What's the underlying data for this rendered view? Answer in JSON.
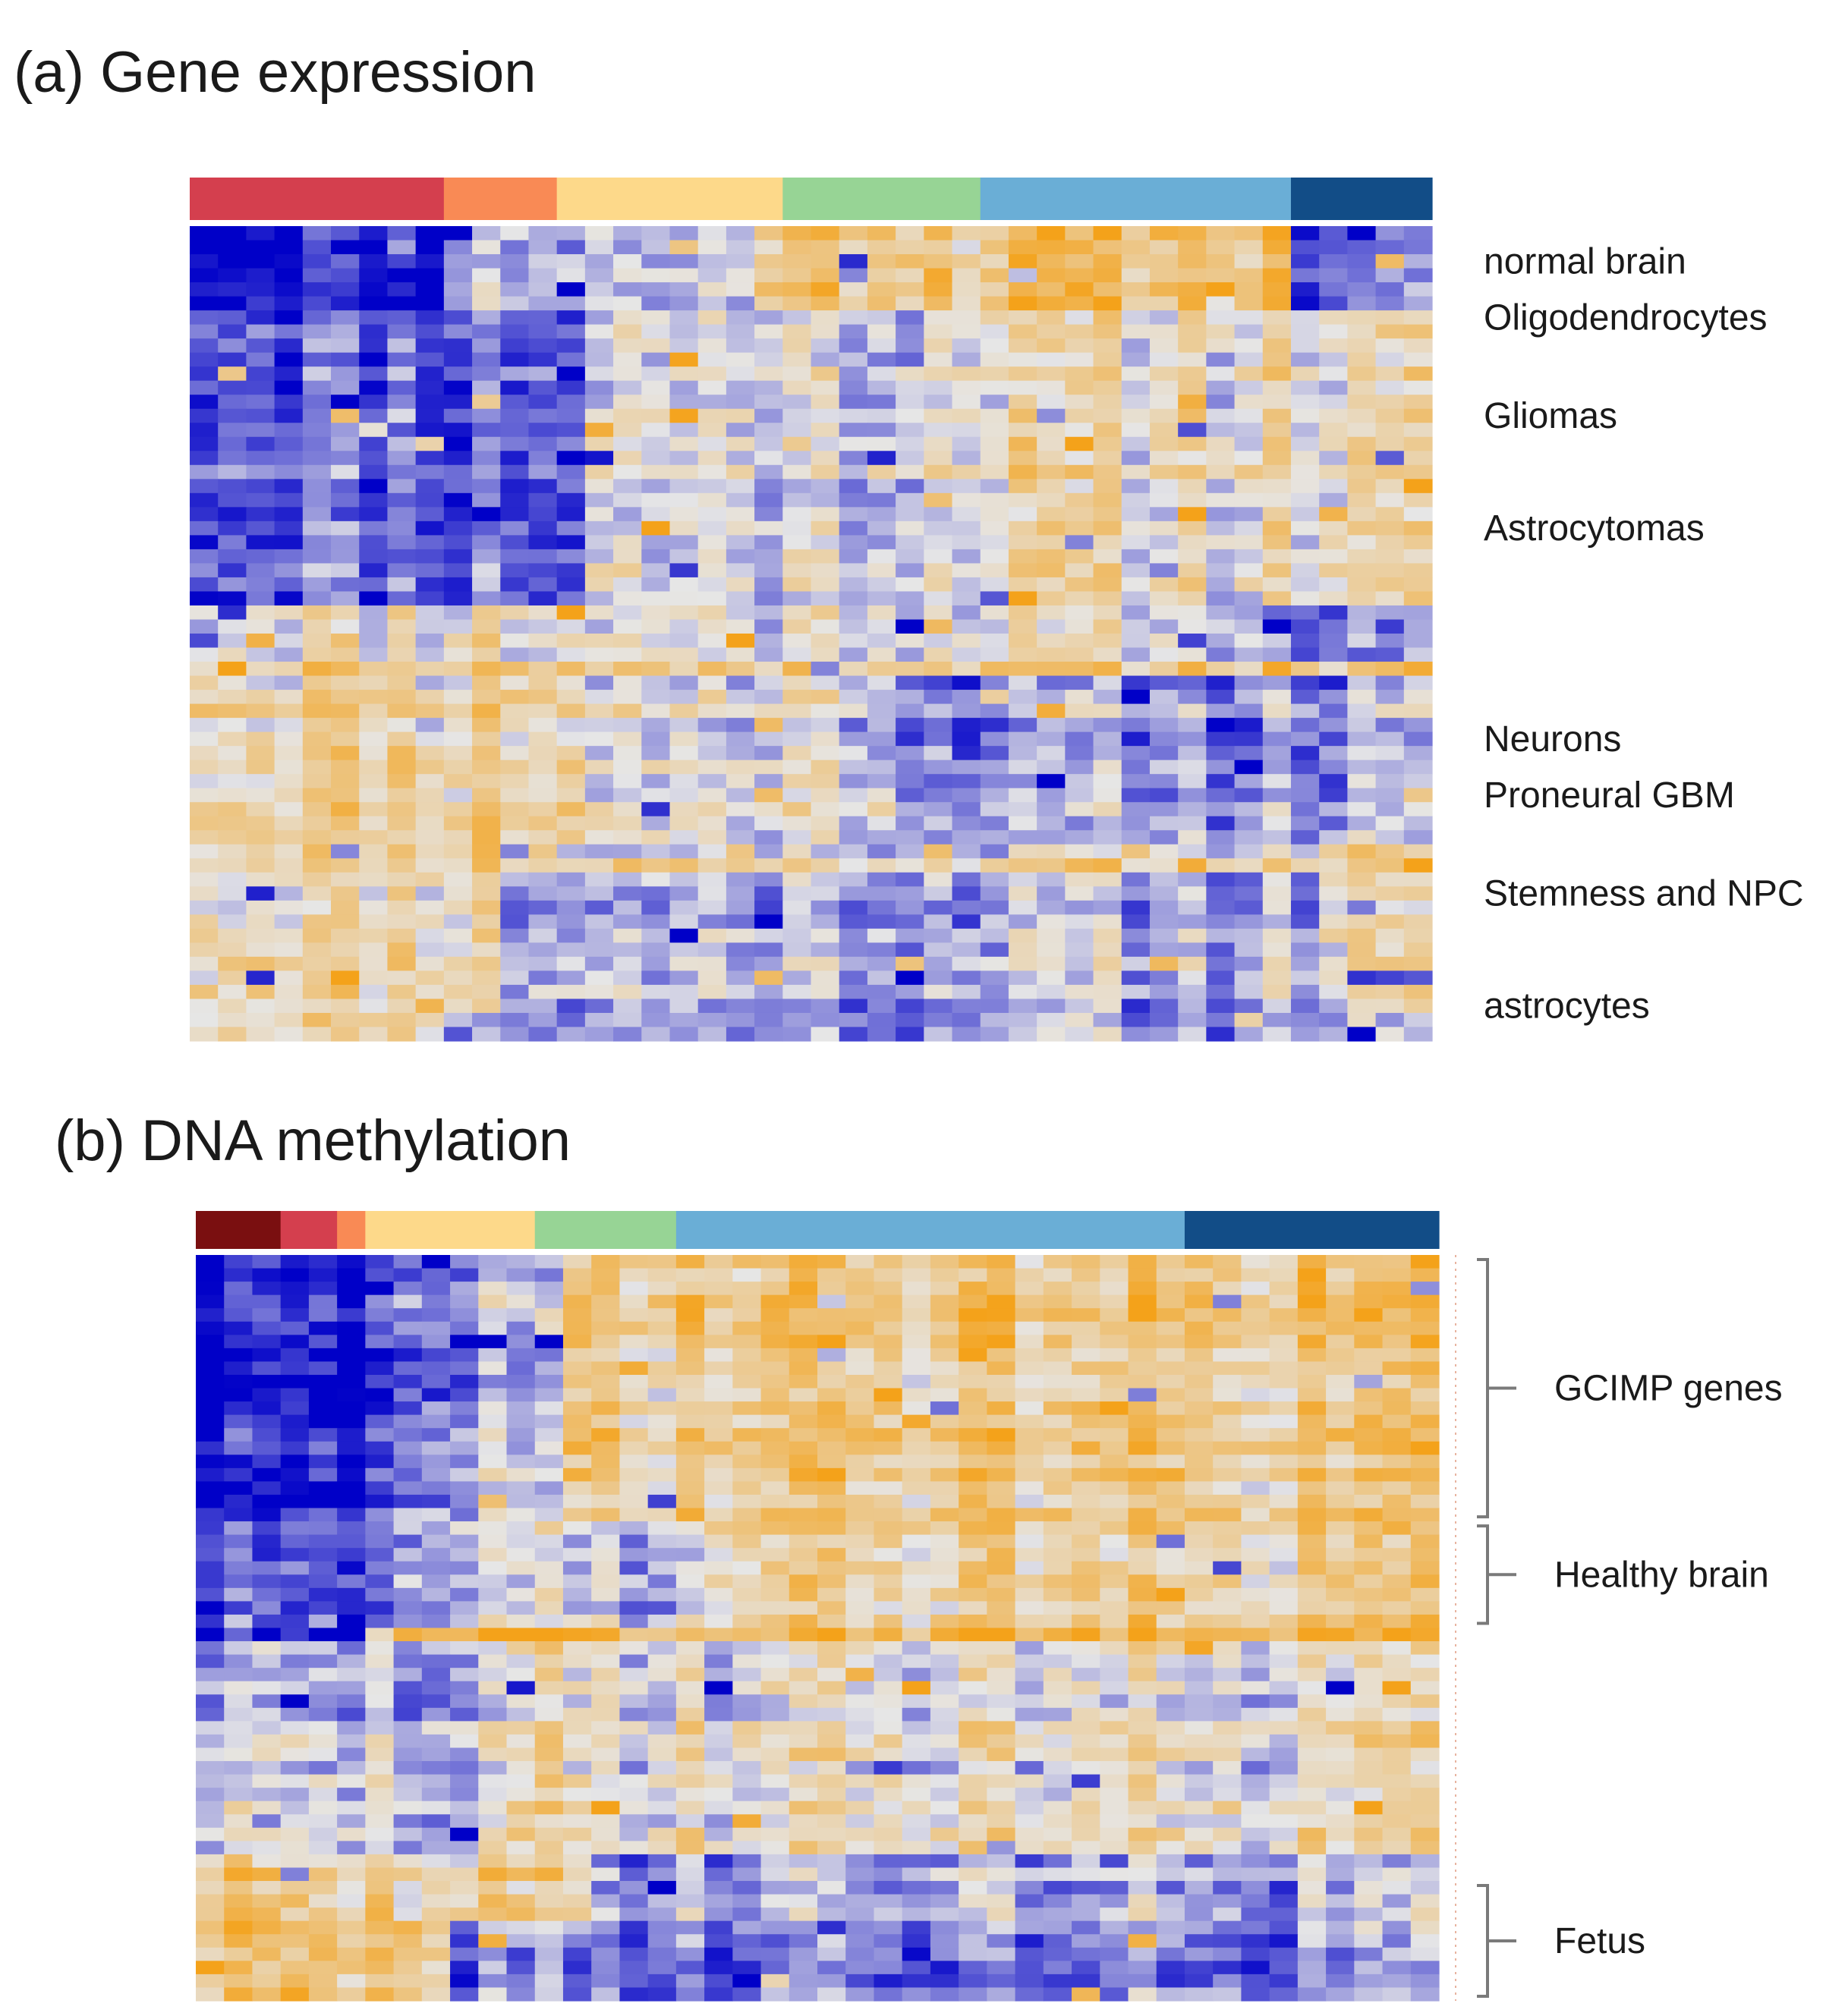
{
  "chart_data": [
    {
      "type": "heatmap",
      "title": "(a) Gene expression",
      "n_columns": 44,
      "n_rows": 58,
      "column_groups": [
        {
          "color": "#d43f4e",
          "count": 9
        },
        {
          "color": "#f98a55",
          "count": 4
        },
        {
          "color": "#fdd98a",
          "count": 8
        },
        {
          "color": "#97d495",
          "count": 7
        },
        {
          "color": "#6aaed6",
          "count": 11
        },
        {
          "color": "#124d87",
          "count": 5
        }
      ],
      "row_labels": [
        {
          "text": "normal brain",
          "row": 2
        },
        {
          "text": "Oligodendrocytes",
          "row": 6
        },
        {
          "text": "Gliomas",
          "row": 13
        },
        {
          "text": "Astrocytomas",
          "row": 21
        },
        {
          "text": "Neurons",
          "row": 36
        },
        {
          "text": "Proneural GBM",
          "row": 40
        },
        {
          "text": "Stemness and NPC",
          "row": 47
        },
        {
          "text": "astrocytes",
          "row": 55
        }
      ],
      "color_scale": {
        "low": "#0000c8",
        "mid": "#e6e6e6",
        "high": "#f4a21a",
        "range": [
          -1,
          1
        ]
      },
      "seed": 11
    },
    {
      "type": "heatmap",
      "title": "(b) DNA methylation",
      "n_columns": 44,
      "n_rows": 56,
      "column_groups": [
        {
          "color": "#7a0f10",
          "count": 3
        },
        {
          "color": "#d43f4e",
          "count": 2
        },
        {
          "color": "#f98a55",
          "count": 1
        },
        {
          "color": "#fdd98a",
          "count": 6
        },
        {
          "color": "#97d495",
          "count": 5
        },
        {
          "color": "#6aaed6",
          "count": 18
        },
        {
          "color": "#124d87",
          "count": 9
        }
      ],
      "brackets": [
        {
          "text": "GCIMP genes",
          "from_row": 0,
          "to_row": 19
        },
        {
          "text": "Healthy brain",
          "from_row": 20,
          "to_row": 27
        },
        {
          "text": "Fetus",
          "from_row": 47,
          "to_row": 55
        }
      ],
      "color_scale": {
        "low": "#0000c8",
        "mid": "#e6e6e6",
        "high": "#f4a21a",
        "range": [
          -1,
          1
        ]
      },
      "seed": 29
    }
  ]
}
